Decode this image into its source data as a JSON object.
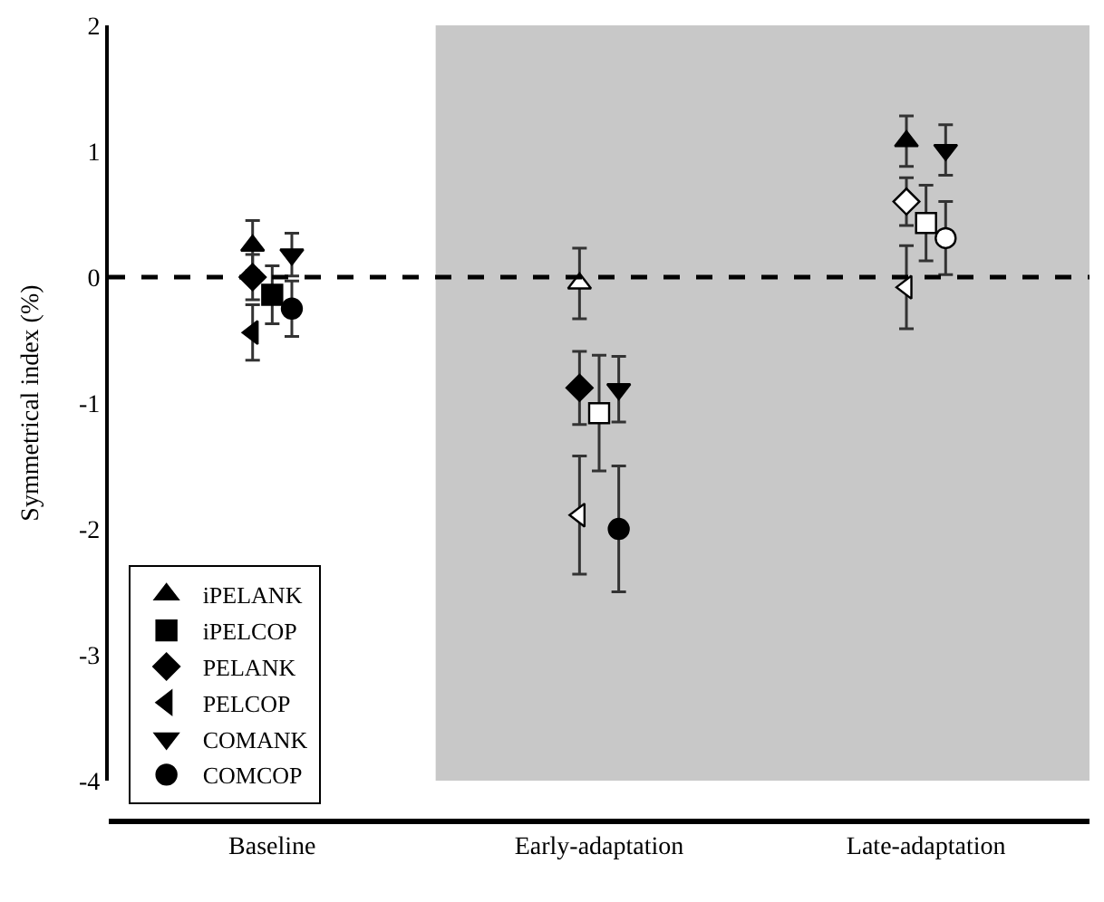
{
  "chart_data": {
    "type": "scatter",
    "ylabel": "Symmetrical index (%)",
    "categories": [
      "Baseline",
      "Early-adaptation",
      "Late-adaptation"
    ],
    "ylim": [
      -4,
      2
    ],
    "yticks": [
      -4,
      -3,
      -2,
      -1,
      0,
      1,
      2
    ],
    "grid": false,
    "legend": "bottom left",
    "series": [
      {
        "name": "iPELANK",
        "marker": "triangle",
        "color": "#000000",
        "colors": [
          "#000000",
          "#ffffff",
          "#000000"
        ],
        "values": [
          0.25,
          -0.05,
          1.08
        ],
        "errors": [
          0.2,
          0.28,
          0.2
        ]
      },
      {
        "name": "iPELCOP",
        "marker": "square",
        "color": "#000000",
        "colors": [
          "#000000",
          "#ffffff",
          "#ffffff"
        ],
        "values": [
          -0.14,
          -1.08,
          0.43
        ],
        "errors": [
          0.23,
          0.46,
          0.3
        ]
      },
      {
        "name": "PELANK",
        "marker": "diamond",
        "color": "#000000",
        "colors": [
          "#000000",
          "#000000",
          "#ffffff"
        ],
        "values": [
          0,
          -0.88,
          0.6
        ],
        "errors": [
          0.18,
          0.29,
          0.19
        ]
      },
      {
        "name": "PELCOP",
        "marker": "triangle-left",
        "color": "#000000",
        "colors": [
          "#000000",
          "#ffffff",
          "#ffffff"
        ],
        "values": [
          -0.44,
          -1.89,
          -0.08
        ],
        "errors": [
          0.22,
          0.47,
          0.33
        ]
      },
      {
        "name": "COMANK",
        "marker": "triangle-down",
        "color": "#000000",
        "colors": [
          "#000000",
          "#000000",
          "#000000"
        ],
        "values": [
          0.18,
          -0.89,
          1.01
        ],
        "errors": [
          0.17,
          0.26,
          0.2
        ]
      },
      {
        "name": "COMCOP",
        "marker": "circle",
        "color": "#000000",
        "colors": [
          "#000000",
          "#000000",
          "#ffffff"
        ],
        "values": [
          -0.25,
          -2.0,
          0.31
        ],
        "errors": [
          0.22,
          0.5,
          0.29
        ]
      }
    ],
    "ref_lines": [
      {
        "axis": "y",
        "value": 0,
        "line_style": "dashed",
        "color": "#000000"
      }
    ],
    "bands": [
      {
        "axis": "x",
        "from": "Early-adaptation",
        "to": "Late-adaptation",
        "color": "#c8c8c8"
      }
    ]
  }
}
